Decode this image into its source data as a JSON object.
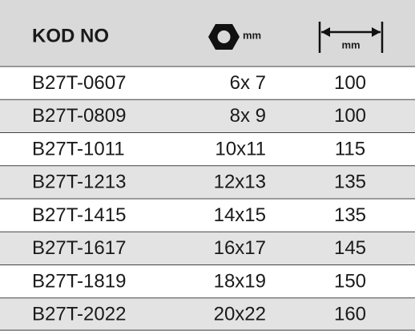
{
  "header": [
    "KOD NO",
    "mm",
    "mm"
  ],
  "rows": [
    [
      "B27T-0607",
      "6x 7",
      "100"
    ],
    [
      "B27T-0809",
      "8x 9",
      "100"
    ],
    [
      "B27T-1011",
      "10x11",
      "115"
    ],
    [
      "B27T-1213",
      "12x13",
      "135"
    ],
    [
      "B27T-1415",
      "14x15",
      "135"
    ],
    [
      "B27T-1617",
      "16x17",
      "145"
    ],
    [
      "B27T-1819",
      "18x19",
      "150"
    ],
    [
      "B27T-2022",
      "20x22",
      "160"
    ]
  ]
}
